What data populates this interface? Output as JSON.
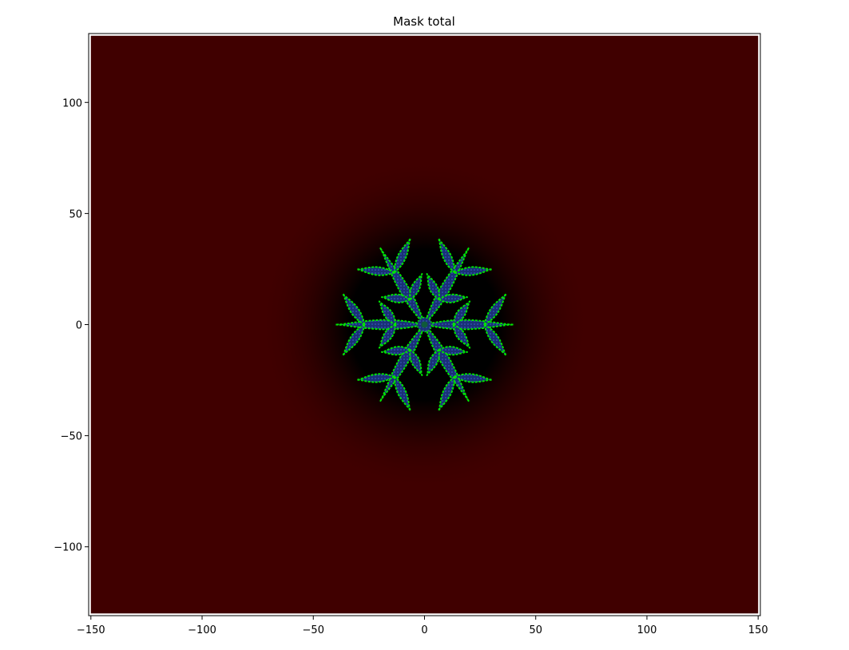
{
  "chart_data": {
    "type": "heatmap",
    "title": "Mask total",
    "xlabel": "",
    "ylabel": "",
    "xlim": [
      -151,
      151
    ],
    "ylim": [
      -131,
      131
    ],
    "data_extent": {
      "x": [
        -150,
        150
      ],
      "y": [
        -130,
        130
      ]
    },
    "x_ticks": [
      -150,
      -100,
      -50,
      0,
      50,
      100,
      150
    ],
    "x_tick_labels": [
      "−150",
      "−100",
      "−50",
      "0",
      "50",
      "100",
      "150"
    ],
    "y_ticks": [
      -100,
      -50,
      0,
      50,
      100
    ],
    "y_tick_labels": [
      "−100",
      "−50",
      "0",
      "50",
      "100"
    ],
    "grid": false,
    "colors": {
      "background": "#400000",
      "halo": "#000000",
      "crystal_fill": "#1a2f78",
      "crystal_edge": "#00e600",
      "crystal_inner": "#0f5a3a"
    },
    "crystal": {
      "shape": "six-fold dendritic snowflake",
      "center": [
        0,
        0
      ],
      "arm_angles_deg": [
        0,
        60,
        120,
        180,
        240,
        300
      ],
      "arm_tip_radius": 40,
      "side_branch_radius": [
        13,
        27
      ],
      "side_branch_length": 17,
      "halo_radius": 75
    }
  }
}
